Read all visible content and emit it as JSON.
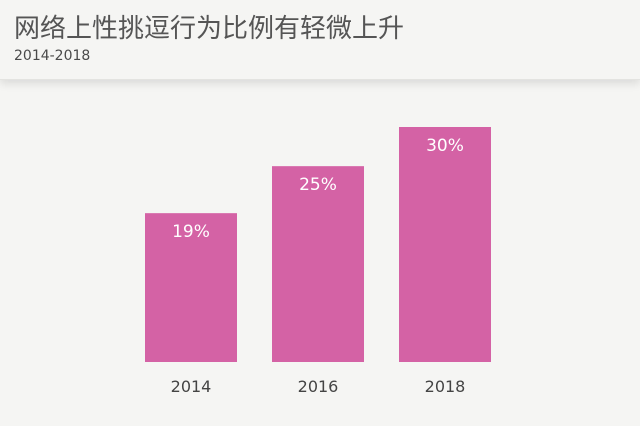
{
  "header": {
    "title": "网络上性挑逗行为比例有轻微上升",
    "subtitle": "2014-2018"
  },
  "colors": {
    "bar": "#d462a5",
    "bar_label": "#ffffff",
    "axis_label": "#444444",
    "background": "#f5f5f3"
  },
  "chart_data": {
    "type": "bar",
    "title": "网络上性挑逗行为比例有轻微上升",
    "subtitle": "2014-2018",
    "categories": [
      "2014",
      "2016",
      "2018"
    ],
    "values": [
      19,
      25,
      30
    ],
    "value_labels": [
      "19%",
      "25%",
      "30%"
    ],
    "xlabel": "",
    "ylabel": "",
    "unit": "%",
    "ylim": [
      0,
      36
    ],
    "grid": false,
    "legend": "none"
  }
}
